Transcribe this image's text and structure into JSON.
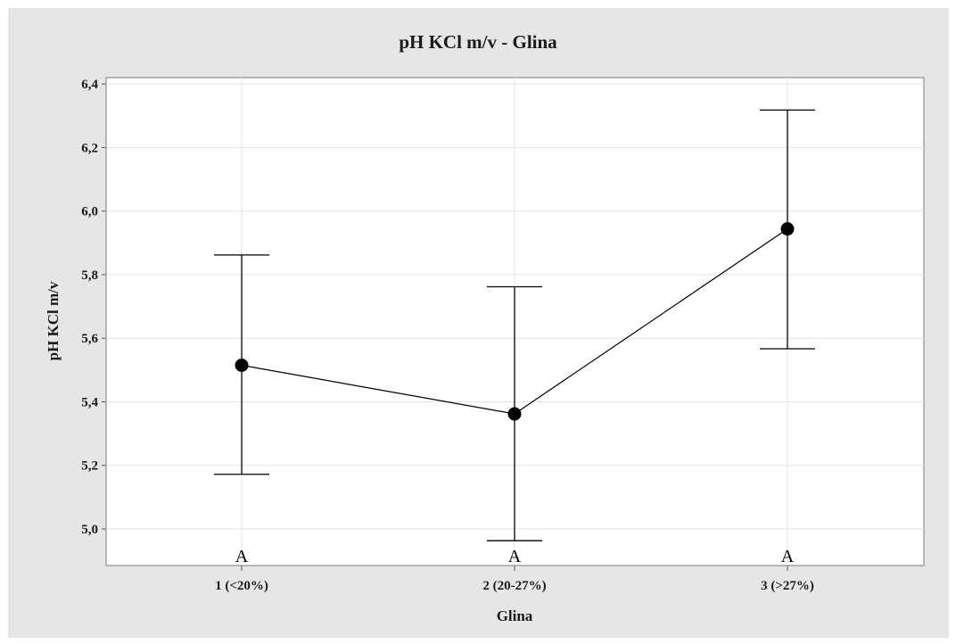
{
  "chart_data": {
    "type": "interval-plot",
    "title": "pH KCl m/v - Glina",
    "xlabel": "Glina",
    "ylabel": "pH KCl m/v",
    "categories": [
      "1 (<20%)",
      "2 (20-27%)",
      "3 (>27%)"
    ],
    "series": [
      {
        "means": [
          5.515,
          5.362,
          5.944
        ],
        "lower": [
          5.172,
          4.963,
          5.567
        ],
        "upper": [
          5.862,
          5.762,
          6.318
        ]
      }
    ],
    "group_letters": [
      "A",
      "A",
      "A"
    ],
    "yticks": [
      "5,0",
      "5,2",
      "5,4",
      "5,6",
      "5,8",
      "6,0",
      "6,2",
      "6,4"
    ],
    "ytick_values": [
      5.0,
      5.2,
      5.4,
      5.6,
      5.8,
      6.0,
      6.2,
      6.4
    ],
    "ylim": [
      4.885,
      6.42
    ],
    "grid": true,
    "colors": {
      "outer_background": "#e6e6e6",
      "plot_background": "#ffffff",
      "grid": "#e3e3e3",
      "marks": "#000000"
    }
  }
}
